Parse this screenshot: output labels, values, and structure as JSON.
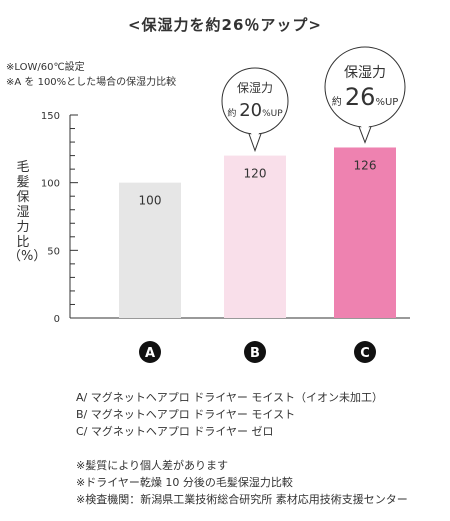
{
  "header": {
    "title": "<保湿力を約26％アップ>",
    "conditions": [
      "※LOW/60℃設定",
      "※A を 100%とした場合の保湿力比較"
    ]
  },
  "axis": {
    "ylabel_chars": [
      "毛",
      "髪",
      "保",
      "湿",
      "力",
      "比"
    ],
    "ylabel_unit": "（%）"
  },
  "chart_data": {
    "type": "bar",
    "categories": [
      "A",
      "B",
      "C"
    ],
    "values": [
      100,
      120,
      126
    ],
    "value_labels": [
      "100",
      "120",
      "126"
    ],
    "ylim": [
      0,
      150
    ],
    "yticks": [
      0,
      50,
      100,
      150
    ],
    "colors": [
      "#e6e6e6",
      "#f9dfea",
      "#ee82b0"
    ],
    "callouts": [
      {
        "category": "B",
        "title": "保湿力",
        "prefix": "約",
        "number": "20",
        "suffix": "%UP"
      },
      {
        "category": "C",
        "title": "保湿力",
        "prefix": "約",
        "number": "26",
        "suffix": "%UP"
      }
    ]
  },
  "legend": [
    "A/ マグネットヘアプロ ドライヤー モイスト（イオン未加工）",
    "B/ マグネットヘアプロ ドライヤー モイスト",
    "C/ マグネットヘアプロ ドライヤー ゼロ"
  ],
  "notes": [
    "※髪質により個人差があります",
    "※ドライヤー乾燥 10 分後の毛髪保湿力比較",
    "※検査機関：新潟県工業技術総合研究所 素材応用技術支援センター"
  ]
}
